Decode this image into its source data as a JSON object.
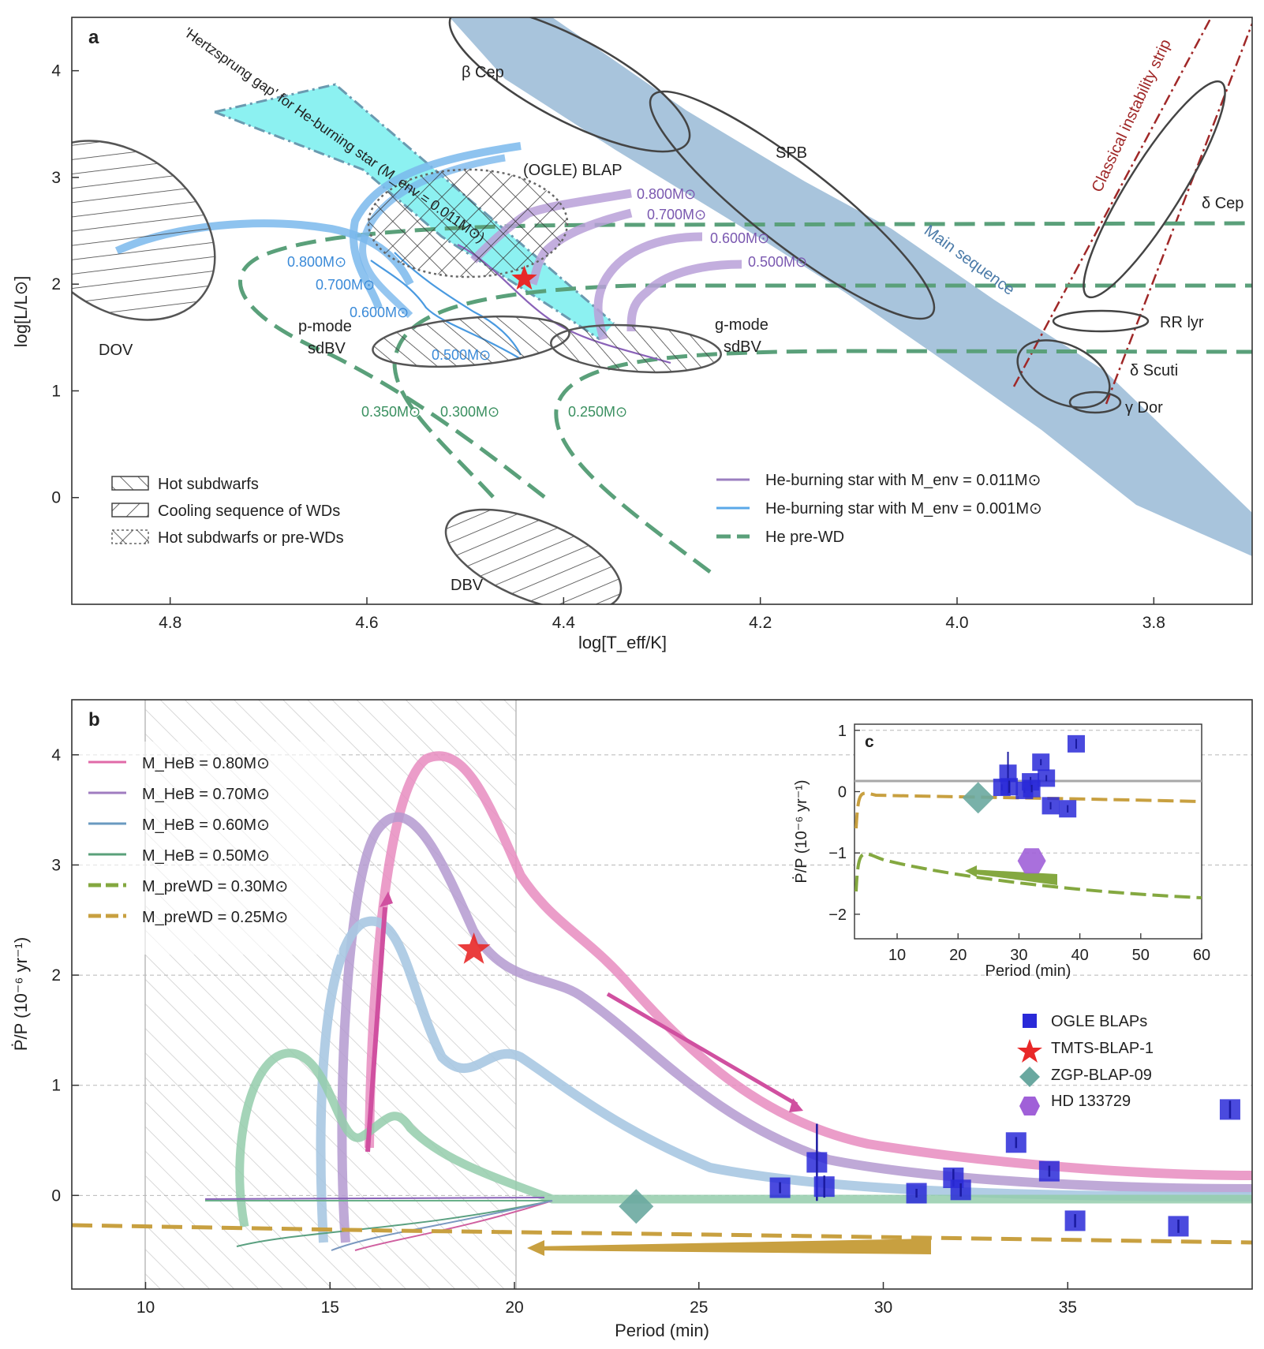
{
  "chart_data": [
    {
      "panel": "a",
      "type": "line",
      "xlabel": "log[T_eff/K]",
      "ylabel": "log[L/L⊙]",
      "xlim": [
        4.9,
        3.7
      ],
      "ylim": [
        -1.0,
        4.5
      ],
      "x_inverted": true,
      "xticks": [
        "4.8",
        "4.6",
        "4.4",
        "4.2",
        "4.0",
        "3.8"
      ],
      "yticks": [
        "0",
        "1",
        "2",
        "3",
        "4"
      ],
      "regions": [
        {
          "name": "DOV",
          "label": "DOV",
          "style": "hatch-back"
        },
        {
          "name": "DBV",
          "label": "DBV",
          "style": "hatch-back"
        },
        {
          "name": "p-mode sdBV",
          "label": "p-mode\nsdBV",
          "style": "hatch-fwd"
        },
        {
          "name": "g-mode sdBV",
          "label": "g-mode\nsdBV",
          "style": "hatch-fwd"
        },
        {
          "name": "(OGLE) BLAP",
          "label": "(OGLE) BLAP",
          "style": "crosshatch"
        },
        {
          "name": "beta Cep",
          "label": "β Cep"
        },
        {
          "name": "SPB",
          "label": "SPB"
        },
        {
          "name": "delta Cep",
          "label": "δ Cep"
        },
        {
          "name": "RR lyr",
          "label": "RR lyr"
        },
        {
          "name": "delta Scuti",
          "label": "δ Scuti"
        },
        {
          "name": "gamma Dor",
          "label": "γ Dor"
        },
        {
          "name": "Main sequence",
          "label": "Main sequence"
        },
        {
          "name": "Classical instability strip",
          "label": "Classical instability strip"
        },
        {
          "name": "Hertzsprung gap",
          "label": "'Hertzsprung gap' for He-burning star (M_env = 0.011M⊙)"
        }
      ],
      "track_labels_purple": [
        "0.800M⊙",
        "0.700M⊙",
        "0.600M⊙",
        "0.500M⊙"
      ],
      "track_labels_blue": [
        "0.800M⊙",
        "0.700M⊙",
        "0.600M⊙",
        "0.500M⊙"
      ],
      "track_labels_green": [
        "0.350M⊙",
        "0.300M⊙",
        "0.250M⊙"
      ],
      "star": {
        "name": "TMTS-BLAP-1",
        "x": 4.44,
        "y": 2.05
      },
      "legend_left": [
        "Hot subdwarfs",
        "Cooling sequence of WDs",
        "Hot subdwarfs or pre-WDs"
      ],
      "legend_right": [
        "He-burning star with M_env = 0.011M⊙",
        "He-burning star with M_env = 0.001M⊙",
        "He pre-WD"
      ]
    },
    {
      "panel": "b",
      "type": "line",
      "xlabel": "Period (min)",
      "ylabel": "Ṗ/P (10⁻⁶ yr⁻¹)",
      "xlim": [
        8,
        40
      ],
      "ylim": [
        -0.85,
        4.5
      ],
      "xticks": [
        "10",
        "15",
        "20",
        "25",
        "30",
        "35"
      ],
      "yticks": [
        "0",
        "1",
        "2",
        "3",
        "4"
      ],
      "shaded_range": [
        10,
        20
      ],
      "legend": [
        "M_HeB = 0.80M⊙",
        "M_HeB = 0.70M⊙",
        "M_HeB = 0.60M⊙",
        "M_HeB = 0.50M⊙",
        "M_preWD = 0.30M⊙",
        "M_preWD = 0.25M⊙"
      ],
      "legend_markers": [
        "OGLE BLAPs",
        "TMTS-BLAP-1",
        "ZGP-BLAP-09",
        "HD 133729"
      ],
      "ogle_blaps": [
        [
          27.2,
          0.07
        ],
        [
          28.2,
          0.3
        ],
        [
          28.4,
          0.08
        ],
        [
          30.9,
          0.02
        ],
        [
          31.9,
          0.16
        ],
        [
          32.1,
          0.05
        ],
        [
          33.6,
          0.48
        ],
        [
          34.5,
          0.22
        ],
        [
          35.2,
          -0.23
        ],
        [
          38.0,
          -0.28
        ],
        [
          39.4,
          0.78
        ]
      ],
      "ogle_blaps_err": [
        0.05,
        0.35,
        0.1,
        0.04,
        0.08,
        0.06,
        0.05,
        0.05,
        0.06,
        0.06,
        0.08
      ],
      "tmts_blap_1": [
        18.9,
        2.23
      ],
      "zgp_blap_09": [
        23.3,
        -0.1
      ]
    },
    {
      "panel": "c",
      "type": "scatter",
      "xlabel": "Period (min)",
      "ylabel": "Ṗ/P (10⁻⁶ yr⁻¹)",
      "xlim": [
        3,
        60
      ],
      "ylim": [
        -2.4,
        1.1
      ],
      "xticks": [
        "10",
        "20",
        "30",
        "40",
        "50",
        "60"
      ],
      "yticks": [
        "1",
        "0",
        "−1",
        "−2"
      ],
      "hd133729": [
        32.1,
        -1.13
      ],
      "zgp_blap_09": [
        23.3,
        -0.1
      ]
    }
  ],
  "colors": {
    "he_burning_0011": "#9b7fc0",
    "he_burning_0001": "#5aa8e8",
    "he_prewd": "#5aa07a",
    "heb_080": "#e06aa8",
    "heb_070": "#a07cc0",
    "heb_060": "#9fc0dc",
    "heb_050": "#8cc4a0",
    "prewd_030": "#84a840",
    "prewd_025": "#c8a040",
    "ogle": "#2a2ad8",
    "tmts": "#e82828",
    "zgp": "#6aa8a0",
    "hd": "#a060d8",
    "main_sequence": "#a8c4dc",
    "gap": "#7ff0f0"
  }
}
